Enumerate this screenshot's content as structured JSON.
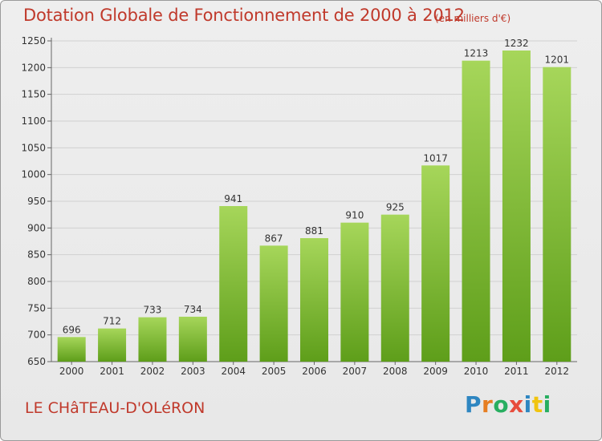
{
  "header": {
    "title": "Dotation Globale de Fonctionnement de 2000 à 2012",
    "subtitle": "(en milliers d'€)"
  },
  "footer": {
    "commune": "LE CHâTEAU-D'OLéRON",
    "brand": "Proxiti",
    "brand_letters": [
      {
        "ch": "P",
        "color": "#2e86c1"
      },
      {
        "ch": "r",
        "color": "#e67e22"
      },
      {
        "ch": "o",
        "color": "#27ae60"
      },
      {
        "ch": "x",
        "color": "#e74c3c"
      },
      {
        "ch": "i",
        "color": "#2e86c1"
      },
      {
        "ch": "t",
        "color": "#f1c40f"
      },
      {
        "ch": "i",
        "color": "#27ae60"
      }
    ]
  },
  "colors": {
    "title": "#c0392b",
    "bar_top": "#a6d65a",
    "bar_bottom": "#5e9e1a",
    "grid": "#d0d0d0"
  },
  "chart_data": {
    "type": "bar",
    "categories": [
      "2000",
      "2001",
      "2002",
      "2003",
      "2004",
      "2005",
      "2006",
      "2007",
      "2008",
      "2009",
      "2010",
      "2011",
      "2012"
    ],
    "values": [
      696,
      712,
      733,
      734,
      941,
      867,
      881,
      910,
      925,
      1017,
      1213,
      1232,
      1201
    ],
    "title": "Dotation Globale de Fonctionnement de 2000 à 2012",
    "subtitle": "(en milliers d'€)",
    "ylim": [
      650,
      1250
    ],
    "yticks": [
      650,
      700,
      750,
      800,
      850,
      900,
      950,
      1000,
      1050,
      1100,
      1150,
      1200,
      1250
    ],
    "grid": true
  }
}
